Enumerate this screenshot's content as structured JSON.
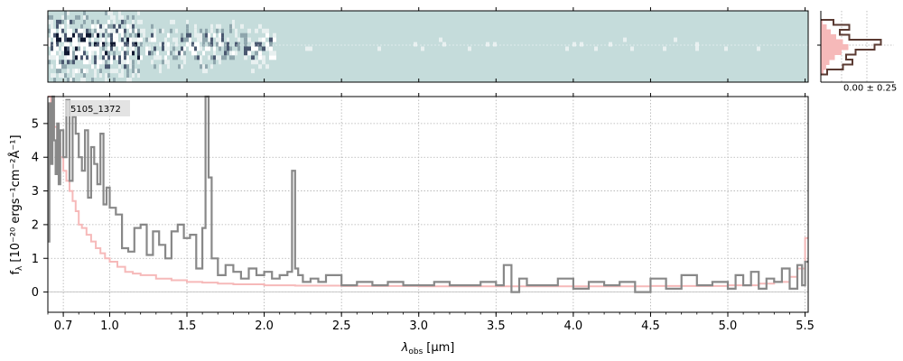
{
  "chart_data": [
    {
      "type": "heatmap",
      "panel": "2d-spectrum",
      "colormap": [
        "#0f1730",
        "#c5dcdb",
        "#ffffff"
      ],
      "background": "#c5dcdb"
    },
    {
      "type": "line",
      "panel": "1d-spectrum",
      "object_label": "5105_1372",
      "xlabel_main": "λ",
      "xlabel_sub": "obs",
      "xlabel_unit": "[μm]",
      "ylabel_main": "f",
      "ylabel_sub": "λ",
      "ylabel_unit": "[10⁻²⁰ ergs⁻¹cm⁻²Å⁻¹]",
      "xlim": [
        0.6,
        5.52
      ],
      "ylim": [
        -0.6,
        5.8
      ],
      "x_ticks": [
        0.7,
        1.0,
        1.5,
        2.0,
        2.5,
        3.0,
        3.5,
        4.0,
        4.5,
        5.0,
        5.5
      ],
      "x_tick_labels": [
        "0.7",
        "1.0",
        "1.5",
        "2.0",
        "2.5",
        "3.0",
        "3.5",
        "4.0",
        "4.5",
        "5.0",
        "5.5"
      ],
      "y_ticks": [
        0,
        1,
        2,
        3,
        4,
        5
      ],
      "y_tick_labels": [
        "0",
        "1",
        "2",
        "3",
        "4",
        "5"
      ],
      "grid": true,
      "colors": {
        "data": "#888888",
        "model": "#f6b9b9"
      },
      "series": [
        {
          "role": "data",
          "x": [
            0.6,
            0.61,
            0.62,
            0.63,
            0.64,
            0.65,
            0.66,
            0.67,
            0.68,
            0.7,
            0.72,
            0.74,
            0.76,
            0.78,
            0.8,
            0.82,
            0.84,
            0.86,
            0.88,
            0.9,
            0.92,
            0.94,
            0.96,
            0.98,
            1.0,
            1.04,
            1.08,
            1.12,
            1.16,
            1.2,
            1.24,
            1.28,
            1.32,
            1.36,
            1.4,
            1.44,
            1.48,
            1.52,
            1.56,
            1.6,
            1.62,
            1.64,
            1.66,
            1.7,
            1.75,
            1.8,
            1.85,
            1.9,
            1.95,
            2.0,
            2.05,
            2.1,
            2.15,
            2.18,
            2.2,
            2.22,
            2.25,
            2.3,
            2.35,
            2.4,
            2.5,
            2.6,
            2.7,
            2.8,
            2.9,
            3.0,
            3.1,
            3.2,
            3.3,
            3.4,
            3.5,
            3.55,
            3.6,
            3.65,
            3.7,
            3.8,
            3.9,
            4.0,
            4.1,
            4.2,
            4.3,
            4.4,
            4.5,
            4.6,
            4.7,
            4.8,
            4.9,
            5.0,
            5.05,
            5.1,
            5.15,
            5.2,
            5.25,
            5.3,
            5.35,
            5.4,
            5.45,
            5.48,
            5.5
          ],
          "y": [
            1.5,
            5.6,
            3.8,
            5.8,
            4.5,
            3.5,
            5.0,
            3.2,
            4.8,
            4.0,
            5.7,
            3.3,
            5.2,
            4.7,
            4.0,
            3.6,
            4.8,
            2.8,
            4.3,
            3.8,
            3.2,
            4.7,
            2.6,
            3.1,
            2.5,
            2.3,
            1.3,
            1.2,
            1.9,
            2.0,
            1.1,
            1.8,
            1.4,
            1.0,
            1.8,
            2.0,
            1.6,
            1.7,
            0.7,
            1.9,
            5.8,
            3.4,
            1.0,
            0.5,
            0.8,
            0.6,
            0.4,
            0.7,
            0.5,
            0.6,
            0.4,
            0.5,
            0.6,
            3.6,
            0.7,
            0.5,
            0.3,
            0.4,
            0.3,
            0.5,
            0.2,
            0.3,
            0.2,
            0.3,
            0.2,
            0.2,
            0.3,
            0.2,
            0.2,
            0.3,
            0.2,
            0.8,
            0.0,
            0.4,
            0.2,
            0.2,
            0.4,
            0.1,
            0.3,
            0.2,
            0.3,
            0.0,
            0.4,
            0.1,
            0.5,
            0.2,
            0.3,
            0.1,
            0.5,
            0.2,
            0.6,
            0.1,
            0.4,
            0.3,
            0.7,
            0.1,
            0.8,
            0.2,
            0.9
          ]
        },
        {
          "role": "model",
          "x": [
            0.6,
            0.62,
            0.64,
            0.66,
            0.68,
            0.7,
            0.72,
            0.74,
            0.76,
            0.78,
            0.8,
            0.82,
            0.85,
            0.88,
            0.91,
            0.94,
            0.97,
            1.0,
            1.05,
            1.1,
            1.15,
            1.2,
            1.3,
            1.4,
            1.5,
            1.6,
            1.7,
            1.8,
            2.0,
            2.2,
            2.5,
            3.0,
            3.5,
            4.0,
            4.5,
            5.0,
            5.2,
            5.3,
            5.4,
            5.45,
            5.5
          ],
          "y": [
            5.8,
            5.4,
            4.9,
            4.4,
            4.0,
            3.6,
            3.3,
            3.0,
            2.7,
            2.4,
            2.0,
            1.9,
            1.7,
            1.5,
            1.3,
            1.15,
            1.0,
            0.9,
            0.75,
            0.6,
            0.55,
            0.5,
            0.4,
            0.35,
            0.3,
            0.28,
            0.25,
            0.23,
            0.2,
            0.19,
            0.18,
            0.17,
            0.17,
            0.17,
            0.18,
            0.2,
            0.25,
            0.3,
            0.45,
            0.7,
            1.6
          ]
        }
      ]
    },
    {
      "type": "histogram",
      "panel": "residual-histogram",
      "annotation": "0.00 ± 0.25",
      "colors": {
        "data": "#5a3a32",
        "fill": "#f6b9b9"
      }
    }
  ]
}
